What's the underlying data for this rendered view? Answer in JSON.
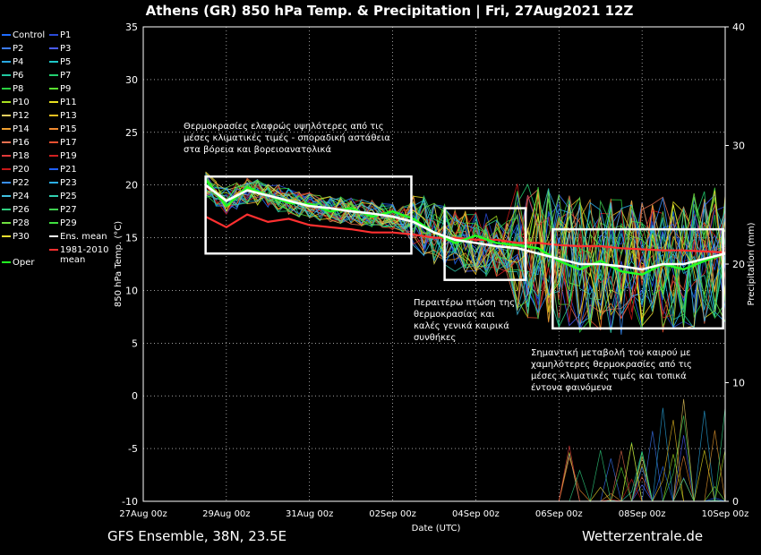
{
  "header": {
    "title": "Athens  (GR)  850 hPa Temp. & Precipitation | Fri, 27Aug2021 12Z"
  },
  "footer": {
    "left": "GFS Ensemble, 38N, 23.5E",
    "right": "Wetterzentrale.de"
  },
  "legend": [
    {
      "label": "Control",
      "color": "#1e6cff"
    },
    {
      "label": "P1",
      "color": "#2a4bd8"
    },
    {
      "label": "P2",
      "color": "#3c7cff"
    },
    {
      "label": "P3",
      "color": "#4a5cff"
    },
    {
      "label": "P4",
      "color": "#29a8e0"
    },
    {
      "label": "P5",
      "color": "#1fc8c8"
    },
    {
      "label": "P6",
      "color": "#20c8a0"
    },
    {
      "label": "P7",
      "color": "#22d070"
    },
    {
      "label": "P8",
      "color": "#2ad040"
    },
    {
      "label": "P9",
      "color": "#5ae030"
    },
    {
      "label": "P10",
      "color": "#a8e020"
    },
    {
      "label": "P11",
      "color": "#e8e020"
    },
    {
      "label": "P12",
      "color": "#f0d060"
    },
    {
      "label": "P13",
      "color": "#f0c020"
    },
    {
      "label": "P14",
      "color": "#f0a030"
    },
    {
      "label": "P15",
      "color": "#f08a30"
    },
    {
      "label": "P16",
      "color": "#e87050"
    },
    {
      "label": "P17",
      "color": "#e85030"
    },
    {
      "label": "P18",
      "color": "#e03a3a"
    },
    {
      "label": "P19",
      "color": "#d02020"
    },
    {
      "label": "P20",
      "color": "#c81818"
    },
    {
      "label": "P21",
      "color": "#2060ff"
    },
    {
      "label": "P22",
      "color": "#3890ff"
    },
    {
      "label": "P23",
      "color": "#2cb0f0"
    },
    {
      "label": "P24",
      "color": "#40c0e0"
    },
    {
      "label": "P25",
      "color": "#30d0b0"
    },
    {
      "label": "P26",
      "color": "#30d080"
    },
    {
      "label": "P27",
      "color": "#40d050"
    },
    {
      "label": "P28",
      "color": "#70e040"
    },
    {
      "label": "P29",
      "color": "#40e040"
    },
    {
      "label": "P30",
      "color": "#f0e030"
    },
    {
      "label": "Ens. mean",
      "color": "#ffffff"
    },
    {
      "label": "Oper",
      "color": "#22ff22"
    },
    {
      "label": "1981-2010 mean",
      "color": "#ff3030"
    }
  ],
  "annotations": [
    {
      "lines": [
        "Θερμοκρασίες ελαφρώς υψηλότερες από τις",
        "μέσες κλιματικές τιμές - σποραδική αστάθεια",
        "στα βόρεια και βορειοανατολικά"
      ]
    },
    {
      "lines": [
        "Περαιτέρω πτώση της",
        "θερμοκρασίας και",
        "καλές γενικά καιρικά",
        "συνθήκες"
      ]
    },
    {
      "lines": [
        "Σημαντική μεταβολή του καιρού με",
        "χαμηλότερες θερμοκρασίες από τις",
        "μέσες κλιματικές τιμές και τοπικά",
        "έντονα φαινόμενα"
      ]
    }
  ],
  "chart_data": {
    "type": "line",
    "title": "Athens  (GR)  850 hPa Temp. & Precipitation | Fri, 27Aug2021 12Z",
    "xlabel": "Date (UTC)",
    "ylabel": "850 hPa Temp. (°C)",
    "y2label": "Precipitation (mm)",
    "x_start": "27Aug 00z",
    "x_end": "10Sep 00z",
    "xlim_days": [
      0,
      14
    ],
    "xticks": [
      {
        "day": 0,
        "label": "27Aug 00z"
      },
      {
        "day": 2,
        "label": "29Aug 00z"
      },
      {
        "day": 4,
        "label": "31Aug 00z"
      },
      {
        "day": 6,
        "label": "02Sep 00z"
      },
      {
        "day": 8,
        "label": "04Sep 00z"
      },
      {
        "day": 10,
        "label": "06Sep 00z"
      },
      {
        "day": 12,
        "label": "08Sep 00z"
      },
      {
        "day": 14,
        "label": "10Sep 00z"
      }
    ],
    "ylim": [
      -10,
      35
    ],
    "yticks": [
      -10,
      -5,
      0,
      5,
      10,
      15,
      20,
      25,
      30,
      35
    ],
    "y2lim": [
      0,
      40
    ],
    "y2ticks": [
      0,
      10,
      20,
      30,
      40
    ],
    "grid": true,
    "legend_position": "left",
    "series_shown": {
      "ens_mean_temp": {
        "name": "Ens. mean",
        "color": "#ffffff",
        "days": [
          1.5,
          2,
          2.5,
          3,
          3.5,
          4,
          4.5,
          5,
          5.5,
          6,
          6.5,
          7,
          7.5,
          8,
          8.5,
          9,
          9.5,
          10,
          10.5,
          11,
          11.5,
          12,
          12.5,
          13,
          13.5,
          14
        ],
        "values": [
          20,
          18.5,
          19.5,
          19,
          18.5,
          18,
          17.8,
          17.5,
          17.3,
          17,
          16.5,
          15.5,
          14.8,
          14.5,
          14.2,
          14,
          13.5,
          13,
          12.5,
          12.5,
          12.3,
          12,
          12.5,
          12.5,
          13,
          13.5
        ]
      },
      "oper_temp": {
        "name": "Oper",
        "color": "#22ff22",
        "days": [
          1.5,
          2,
          2.5,
          3,
          3.5,
          4,
          4.5,
          5,
          5.5,
          6,
          6.5,
          7,
          7.5,
          8,
          8.5,
          9,
          9.5,
          10,
          10.5,
          11,
          11.5,
          12,
          12.5,
          13,
          13.5,
          14
        ],
        "values": [
          20.5,
          18,
          19.8,
          19,
          18.3,
          18.2,
          17.5,
          17.8,
          17,
          17.5,
          16.8,
          15.5,
          14.5,
          15.2,
          14.5,
          14.3,
          14,
          12.8,
          12,
          12.8,
          11.8,
          11.5,
          12.5,
          12,
          12.8,
          13.5
        ]
      },
      "clim_mean_temp": {
        "name": "1981-2010 mean",
        "color": "#ff3030",
        "days": [
          1.5,
          2,
          2.5,
          3,
          3.5,
          4,
          4.5,
          5,
          5.5,
          6,
          6.5,
          7,
          7.5,
          8,
          8.5,
          9,
          9.5,
          10,
          10.5,
          11,
          11.5,
          12,
          12.5,
          13,
          13.5,
          14
        ],
        "values": [
          17,
          16,
          17.2,
          16.5,
          16.8,
          16.2,
          16,
          15.8,
          15.5,
          15.5,
          15.3,
          15,
          15,
          14.8,
          14.8,
          14.5,
          14.5,
          14.3,
          14.2,
          14.2,
          14,
          13.9,
          13.8,
          13.8,
          13.7,
          13.6
        ]
      }
    }
  }
}
